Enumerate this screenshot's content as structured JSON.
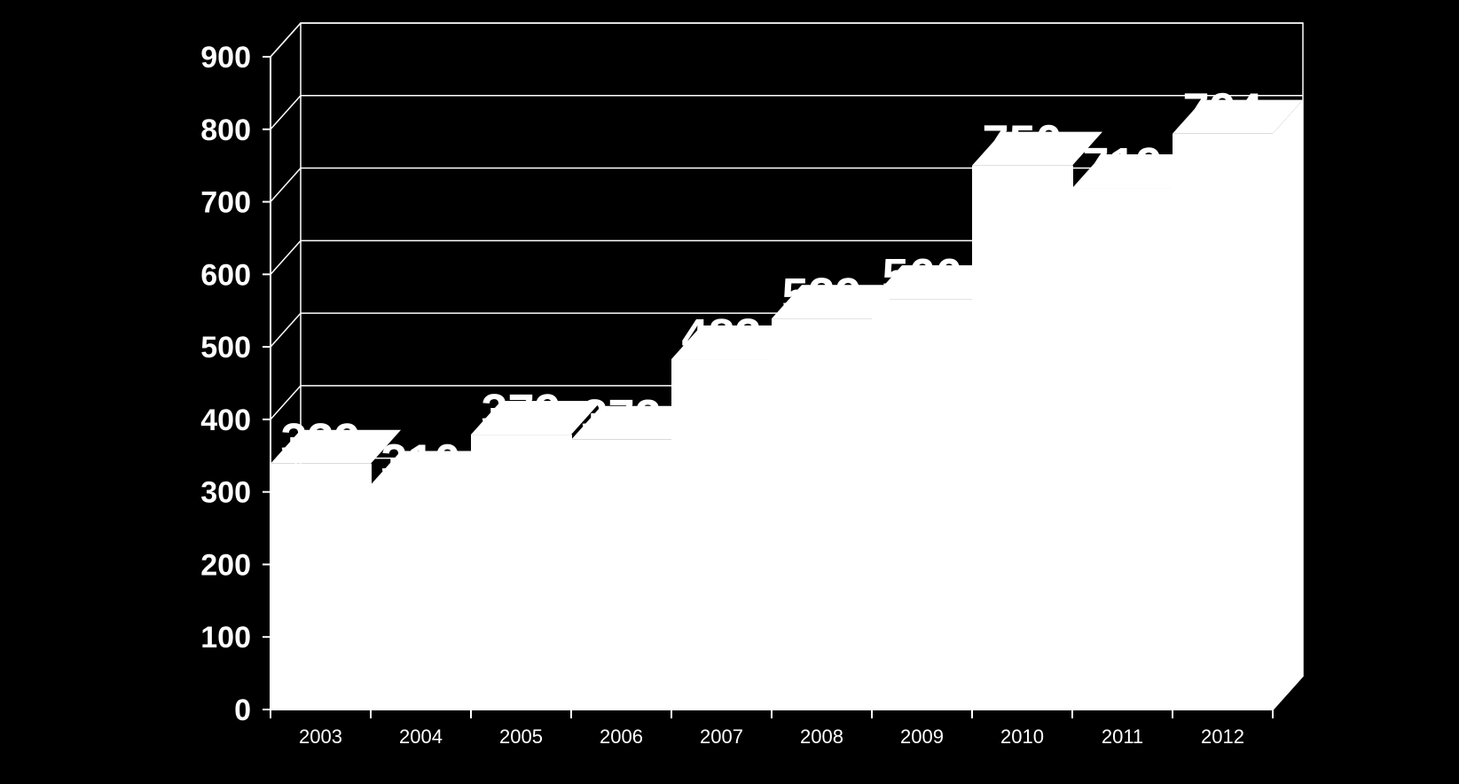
{
  "colors": {
    "background": "#000000",
    "gridline": "#ffffff",
    "bar": "#ffffff",
    "text": "#ffffff"
  },
  "chart_data": {
    "type": "bar",
    "style": "3d-step",
    "categories": [
      "2003",
      "2004",
      "2005",
      "2006",
      "2007",
      "2008",
      "2009",
      "2010",
      "2011",
      "2012"
    ],
    "values": [
      339,
      310,
      379,
      372,
      483,
      539,
      566,
      750,
      719,
      794
    ],
    "data_labels": [
      "339",
      "310",
      "379",
      "372",
      "483",
      "539",
      "566",
      "750",
      "719",
      "794"
    ],
    "yticks": [
      "0",
      "100",
      "200",
      "300",
      "400",
      "500",
      "600",
      "700",
      "800",
      "900"
    ],
    "ylim": [
      0,
      900
    ],
    "grid": true,
    "legend": "none",
    "title": "",
    "xlabel": "",
    "ylabel": ""
  }
}
